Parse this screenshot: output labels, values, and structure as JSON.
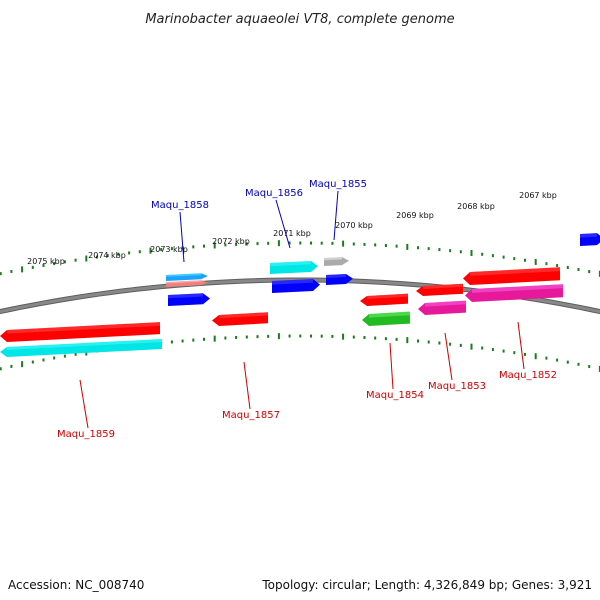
{
  "title": "Marinobacter aquaeolei VT8, complete genome",
  "footer": {
    "accession": "Accession: NC_008740",
    "summary": "Topology: circular; Length: 4,326,849 bp; Genes: 3,921"
  },
  "colors": {
    "backbone": "#888888",
    "tick": "#1e7a1e",
    "forward_label": "#0000bb",
    "reverse_label": "#cc0000"
  },
  "ticks": [
    {
      "label": "2075 kbp"
    },
    {
      "label": "2074 kbp"
    },
    {
      "label": "2073 kbp"
    },
    {
      "label": "2072 kbp"
    },
    {
      "label": "2071 kbp"
    },
    {
      "label": "2070 kbp"
    },
    {
      "label": "2069 kbp"
    },
    {
      "label": "2068 kbp"
    },
    {
      "label": "2067 kbp"
    }
  ],
  "genes": [
    {
      "label": "Maqu_1859",
      "strand": "reverse",
      "colors": [
        "#ff0000",
        "#00e5e5"
      ]
    },
    {
      "label": "Maqu_1858",
      "strand": "forward",
      "colors": [
        "#1aa3ff",
        "#f08080",
        "#0000ff"
      ]
    },
    {
      "label": "Maqu_1857",
      "strand": "reverse",
      "colors": [
        "#ff0000"
      ]
    },
    {
      "label": "Maqu_1856",
      "strand": "forward",
      "colors": [
        "#00e5e5",
        "#0000ff"
      ]
    },
    {
      "label": "Maqu_1855",
      "strand": "forward",
      "colors": [
        "#aaaaaa",
        "#0000ff"
      ]
    },
    {
      "label": "Maqu_1854",
      "strand": "reverse",
      "colors": [
        "#ff0000",
        "#22bb22"
      ]
    },
    {
      "label": "Maqu_1853",
      "strand": "reverse",
      "colors": [
        "#ff0000",
        "#e6199a"
      ]
    },
    {
      "label": "Maqu_1852",
      "strand": "reverse",
      "colors": [
        "#ff0000",
        "#e6199a"
      ]
    },
    {
      "label": "",
      "strand": "forward",
      "colors": [
        "#0000ff"
      ]
    }
  ]
}
